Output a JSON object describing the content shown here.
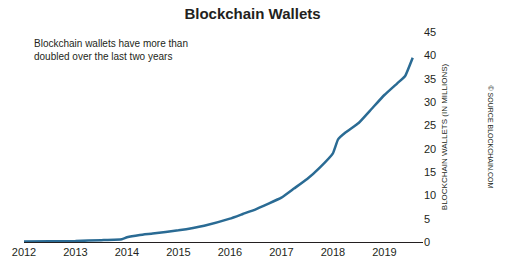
{
  "chart_data": {
    "type": "line",
    "title": "Blockchain Wallets",
    "annotation": "Blockchain wallets have more than doubled over the last two years",
    "y_label": "BLOCKCHAIN WALLETS (IN MILLIONS)",
    "source": "© SOURCE BLOCKCHAIN.COM",
    "x": [
      2012.0,
      2012.5,
      2013.0,
      2013.5,
      2013.9,
      2014.0,
      2014.25,
      2014.5,
      2015.0,
      2015.5,
      2016.0,
      2016.25,
      2016.5,
      2017.0,
      2017.25,
      2017.5,
      2017.75,
      2018.0,
      2018.1,
      2018.25,
      2018.5,
      2018.75,
      2019.0,
      2019.25,
      2019.4,
      2019.55
    ],
    "values": [
      0.1,
      0.15,
      0.2,
      0.4,
      0.6,
      1.0,
      1.5,
      1.8,
      2.5,
      3.5,
      5,
      6,
      7,
      9.5,
      11.5,
      13.5,
      16,
      19,
      22,
      23.5,
      25.5,
      28.5,
      31.5,
      34,
      35.5,
      39.5
    ],
    "color": "#2a6b94",
    "xlim": [
      2012,
      2019.75
    ],
    "xticks": [
      2012,
      2013,
      2014,
      2015,
      2016,
      2017,
      2018,
      2019
    ],
    "ylim": [
      0,
      45
    ],
    "yticks": [
      0,
      5,
      10,
      15,
      20,
      25,
      30,
      35,
      40,
      45
    ],
    "grid": false
  }
}
